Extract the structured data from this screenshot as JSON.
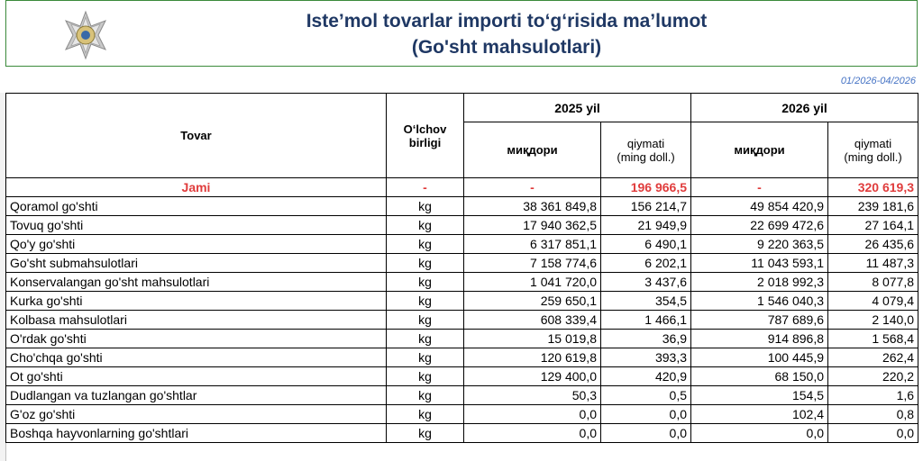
{
  "header": {
    "title_line1": "Iste’mol tovarlar importi to‘g‘risida ma’lumot",
    "title_line2": "(Go'sht mahsulotlari)",
    "logo_icon": "customs-emblem-icon",
    "border_color": "#3a8a3a",
    "title_color": "#1f3864"
  },
  "period": "01/2026-04/2026",
  "table": {
    "col_tovar": "Tovar",
    "col_unit": "O‘lchov birligi",
    "year1": "2025 yil",
    "year2": "2026 yil",
    "qty_label": "миқдори",
    "value_label": "qiymati",
    "value_unit": "(ming doll.)",
    "total": {
      "name": "Jami",
      "unit": "-",
      "q2025": "-",
      "v2025": "196 966,5",
      "q2026": "-",
      "v2026": "320 619,3",
      "color": "#e03c3c"
    },
    "rows": [
      {
        "name": "Qoramol go'shti",
        "unit": "kg",
        "q2025": "38 361 849,8",
        "v2025": "156 214,7",
        "q2026": "49 854 420,9",
        "v2026": "239 181,6"
      },
      {
        "name": "Tovuq go'shti",
        "unit": "kg",
        "q2025": "17 940 362,5",
        "v2025": "21 949,9",
        "q2026": "22 699 472,6",
        "v2026": "27 164,1"
      },
      {
        "name": "Qo'y go'shti",
        "unit": "kg",
        "q2025": "6 317 851,1",
        "v2025": "6 490,1",
        "q2026": "9 220 363,5",
        "v2026": "26 435,6"
      },
      {
        "name": "Go'sht submahsulotlari",
        "unit": "kg",
        "q2025": "7 158 774,6",
        "v2025": "6 202,1",
        "q2026": "11 043 593,1",
        "v2026": "11 487,3"
      },
      {
        "name": "Konservalangan go'sht mahsulotlari",
        "unit": "kg",
        "q2025": "1 041 720,0",
        "v2025": "3 437,6",
        "q2026": "2 018 992,3",
        "v2026": "8 077,8"
      },
      {
        "name": "Kurka go'shti",
        "unit": "kg",
        "q2025": "259 650,1",
        "v2025": "354,5",
        "q2026": "1 546 040,3",
        "v2026": "4 079,4"
      },
      {
        "name": "Kolbasa mahsulotlari",
        "unit": "kg",
        "q2025": "608 339,4",
        "v2025": "1 466,1",
        "q2026": "787 689,6",
        "v2026": "2 140,0"
      },
      {
        "name": "O'rdak go'shti",
        "unit": "kg",
        "q2025": "15 019,8",
        "v2025": "36,9",
        "q2026": "914 896,8",
        "v2026": "1 568,4"
      },
      {
        "name": "Cho'chqa go'shti",
        "unit": "kg",
        "q2025": "120 619,8",
        "v2025": "393,3",
        "q2026": "100 445,9",
        "v2026": "262,4"
      },
      {
        "name": "Ot go'shti",
        "unit": "kg",
        "q2025": "129 400,0",
        "v2025": "420,9",
        "q2026": "68 150,0",
        "v2026": "220,2"
      },
      {
        "name": "Dudlangan va tuzlangan go'shtlar",
        "unit": "kg",
        "q2025": "50,3",
        "v2025": "0,5",
        "q2026": "154,5",
        "v2026": "1,6"
      },
      {
        "name": "G'oz go'shti",
        "unit": "kg",
        "q2025": "0,0",
        "v2025": "0,0",
        "q2026": "102,4",
        "v2026": "0,8"
      },
      {
        "name": "Boshqa hayvonlarning go'shtlari",
        "unit": "kg",
        "q2025": "0,0",
        "v2025": "0,0",
        "q2026": "0,0",
        "v2026": "0,0"
      }
    ]
  }
}
